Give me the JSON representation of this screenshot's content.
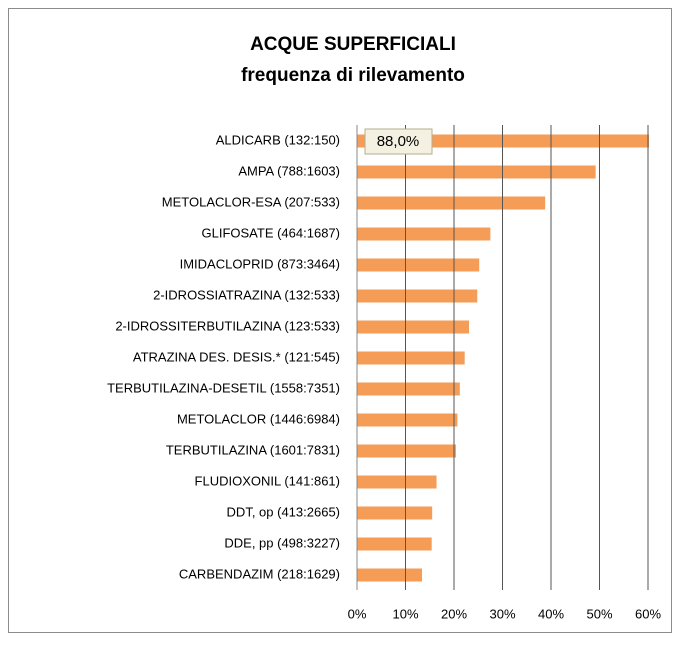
{
  "chart_data": {
    "type": "bar",
    "orientation": "horizontal",
    "title": "ACQUE SUPERFICIALI",
    "subtitle": "frequenza di rilevamento",
    "categories": [
      "ALDICARB (132:150)",
      "AMPA (788:1603)",
      "METOLACLOR-ESA (207:533)",
      "GLIFOSATE (464:1687)",
      "IMIDACLOPRID (873:3464)",
      "2-IDROSSIATRAZINA (132:533)",
      "2-IDROSSITERBUTILAZINA (123:533)",
      "ATRAZINA DES. DESIS.* (121:545)",
      "TERBUTILAZINA-DESETIL (1558:7351)",
      "METOLACLOR (1446:6984)",
      "TERBUTILAZINA (1601:7831)",
      "FLUDIOXONIL (141:861)",
      "DDT, op (413:2665)",
      "DDE, pp (498:3227)",
      "CARBENDAZIM (218:1629)"
    ],
    "values": [
      88.0,
      49.2,
      38.8,
      27.5,
      25.2,
      24.8,
      23.1,
      22.2,
      21.2,
      20.7,
      20.4,
      16.4,
      15.5,
      15.4,
      13.4
    ],
    "value_labels": [
      "88,0%",
      null,
      null,
      null,
      null,
      null,
      null,
      null,
      null,
      null,
      null,
      null,
      null,
      null,
      null
    ],
    "color": "#f59d56",
    "xlim": [
      0,
      60
    ],
    "xticks": [
      {
        "value": 0,
        "label": "0%"
      },
      {
        "value": 10,
        "label": "10%"
      },
      {
        "value": 20,
        "label": "20%"
      },
      {
        "value": 30,
        "label": "30%"
      },
      {
        "value": 40,
        "label": "40%"
      },
      {
        "value": 50,
        "label": "50%"
      },
      {
        "value": 60,
        "label": "60%"
      }
    ],
    "grid": true
  }
}
